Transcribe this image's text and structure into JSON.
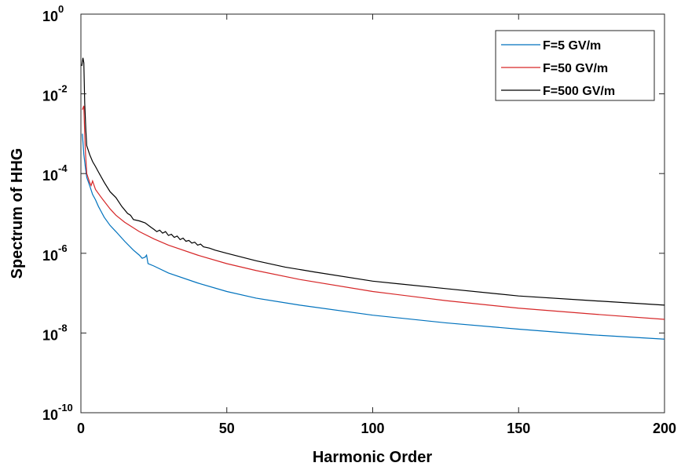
{
  "chart_data": {
    "type": "line",
    "xlabel": "Harmonic Order",
    "ylabel": "Spectrum of HHG",
    "xlim": [
      0,
      200
    ],
    "ylim": [
      1e-10,
      1
    ],
    "y_scale": "log",
    "x_ticks": [
      {
        "value": 0,
        "label": "0"
      },
      {
        "value": 50,
        "label": "50"
      },
      {
        "value": 100,
        "label": "100"
      },
      {
        "value": 150,
        "label": "150"
      },
      {
        "value": 200,
        "label": "200"
      }
    ],
    "y_ticks": [
      {
        "value": 1e-10,
        "base": "10",
        "exp": "-10"
      },
      {
        "value": 1e-08,
        "base": "10",
        "exp": "-8"
      },
      {
        "value": 1e-06,
        "base": "10",
        "exp": "-6"
      },
      {
        "value": 0.0001,
        "base": "10",
        "exp": "-4"
      },
      {
        "value": 0.01,
        "base": "10",
        "exp": "-2"
      },
      {
        "value": 1,
        "base": "10",
        "exp": "0"
      }
    ],
    "grid": false,
    "legend_position": "top-right",
    "series": [
      {
        "name": "F=5 GV/m",
        "color": "#0072BD",
        "points": [
          [
            0.5,
            0.001
          ],
          [
            1,
            0.0003
          ],
          [
            1.5,
            0.00015
          ],
          [
            2,
            8e-05
          ],
          [
            3,
            5e-05
          ],
          [
            4,
            3e-05
          ],
          [
            5,
            2.2e-05
          ],
          [
            6,
            1.5e-05
          ],
          [
            8,
            8e-06
          ],
          [
            10,
            5e-06
          ],
          [
            12,
            3.5e-06
          ],
          [
            15,
            2e-06
          ],
          [
            18,
            1.2e-06
          ],
          [
            20,
            9e-07
          ],
          [
            21,
            7.5e-07
          ],
          [
            22,
            8e-07
          ],
          [
            22.5,
            9e-07
          ],
          [
            23,
            5.5e-07
          ],
          [
            25,
            4.8e-07
          ],
          [
            30,
            3.2e-07
          ],
          [
            40,
            1.8e-07
          ],
          [
            50,
            1.1e-07
          ],
          [
            60,
            7.5e-08
          ],
          [
            75,
            5e-08
          ],
          [
            100,
            2.8e-08
          ],
          [
            125,
            1.8e-08
          ],
          [
            150,
            1.25e-08
          ],
          [
            175,
            9e-09
          ],
          [
            200,
            7e-09
          ]
        ]
      },
      {
        "name": "F=50 GV/m",
        "color": "#D62728",
        "points": [
          [
            0.5,
            0.004
          ],
          [
            1,
            0.005
          ],
          [
            1.3,
            0.001
          ],
          [
            1.6,
            0.0003
          ],
          [
            2,
            0.0001
          ],
          [
            3,
            6e-05
          ],
          [
            3.5,
            5e-05
          ],
          [
            4,
            6.5e-05
          ],
          [
            5,
            4e-05
          ],
          [
            7,
            2.5e-05
          ],
          [
            10,
            1.3e-05
          ],
          [
            12,
            9e-06
          ],
          [
            15,
            6e-06
          ],
          [
            20,
            3.5e-06
          ],
          [
            25,
            2.3e-06
          ],
          [
            30,
            1.6e-06
          ],
          [
            40,
            9e-07
          ],
          [
            50,
            5.5e-07
          ],
          [
            60,
            3.7e-07
          ],
          [
            75,
            2.2e-07
          ],
          [
            100,
            1.1e-07
          ],
          [
            125,
            6.5e-08
          ],
          [
            150,
            4.2e-08
          ],
          [
            175,
            3e-08
          ],
          [
            200,
            2.2e-08
          ]
        ]
      },
      {
        "name": "F=500 GV/m",
        "color": "#000000",
        "points": [
          [
            0.3,
            0.05
          ],
          [
            0.7,
            0.08
          ],
          [
            1,
            0.06
          ],
          [
            1.3,
            0.006
          ],
          [
            1.7,
            0.0012
          ],
          [
            2,
            0.0005
          ],
          [
            3,
            0.0003
          ],
          [
            4,
            0.0002
          ],
          [
            5,
            0.00015
          ],
          [
            6,
            0.00011
          ],
          [
            8,
            6e-05
          ],
          [
            10,
            3.5e-05
          ],
          [
            12,
            2.5e-05
          ],
          [
            14,
            1.5e-05
          ],
          [
            16,
            1e-05
          ],
          [
            17,
            9e-06
          ],
          [
            18,
            7e-06
          ],
          [
            20,
            6.5e-06
          ],
          [
            22,
            5.8e-06
          ],
          [
            24,
            4.5e-06
          ],
          [
            25,
            4e-06
          ],
          [
            26,
            3.5e-06
          ],
          [
            27,
            3.8e-06
          ],
          [
            28,
            3.2e-06
          ],
          [
            29,
            3.5e-06
          ],
          [
            30,
            2.8e-06
          ],
          [
            31,
            3e-06
          ],
          [
            32,
            2.5e-06
          ],
          [
            33,
            2.7e-06
          ],
          [
            34,
            2.2e-06
          ],
          [
            35,
            2.4e-06
          ],
          [
            36,
            2e-06
          ],
          [
            37,
            2.1e-06
          ],
          [
            38,
            1.8e-06
          ],
          [
            39,
            1.9e-06
          ],
          [
            40,
            1.6e-06
          ],
          [
            41,
            1.7e-06
          ],
          [
            42,
            1.45e-06
          ],
          [
            44,
            1.35e-06
          ],
          [
            46,
            1.2e-06
          ],
          [
            50,
            1e-06
          ],
          [
            60,
            6.5e-07
          ],
          [
            70,
            4.5e-07
          ],
          [
            80,
            3.4e-07
          ],
          [
            100,
            2e-07
          ],
          [
            125,
            1.3e-07
          ],
          [
            150,
            8.5e-08
          ],
          [
            175,
            6.5e-08
          ],
          [
            200,
            5e-08
          ]
        ]
      }
    ]
  }
}
